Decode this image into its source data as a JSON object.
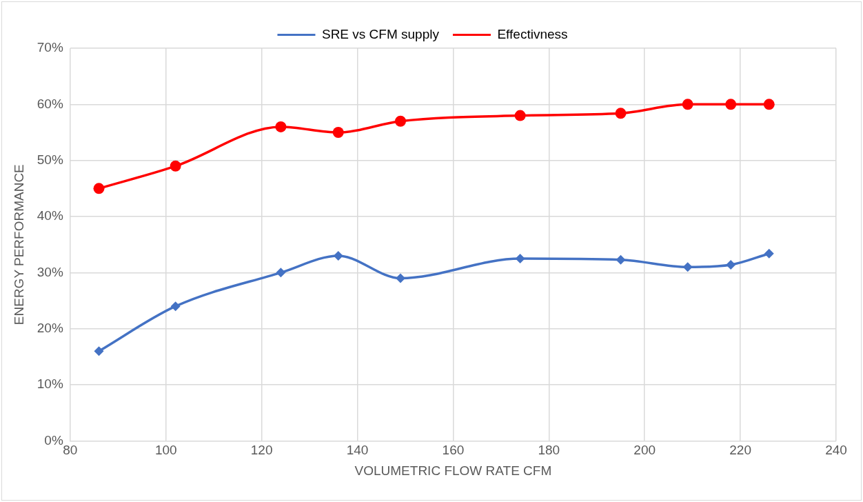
{
  "chart_data": {
    "type": "line",
    "xlabel": "VOLUMETRIC FLOW RATE CFM",
    "ylabel": "ENERGY PERFORMANCE",
    "xlim": [
      80,
      240
    ],
    "xticks": [
      80,
      100,
      120,
      140,
      160,
      180,
      200,
      220,
      240
    ],
    "ylim": [
      0,
      70
    ],
    "yticks": [
      {
        "value": 0,
        "label": "0%"
      },
      {
        "value": 10,
        "label": "10%"
      },
      {
        "value": 20,
        "label": "20%"
      },
      {
        "value": 30,
        "label": "30%"
      },
      {
        "value": 40,
        "label": "40%"
      },
      {
        "value": 50,
        "label": "50%"
      },
      {
        "value": 60,
        "label": "60%"
      },
      {
        "value": 70,
        "label": "70%"
      }
    ],
    "x": [
      86,
      102,
      124,
      136,
      149,
      174,
      195,
      209,
      218,
      226
    ],
    "grid": true,
    "legend": "top",
    "line_style": "solid",
    "series": [
      {
        "name": "SRE vs CFM supply",
        "color": "#4472c4",
        "marker": "diamond",
        "values": [
          16,
          24,
          30,
          33,
          29,
          32.5,
          32.3,
          31,
          31.4,
          33.4
        ]
      },
      {
        "name": "Effectivness",
        "color": "#ff0000",
        "marker": "circle",
        "values": [
          45,
          49,
          56,
          55,
          57,
          58,
          58.4,
          60,
          60,
          60
        ]
      }
    ]
  }
}
